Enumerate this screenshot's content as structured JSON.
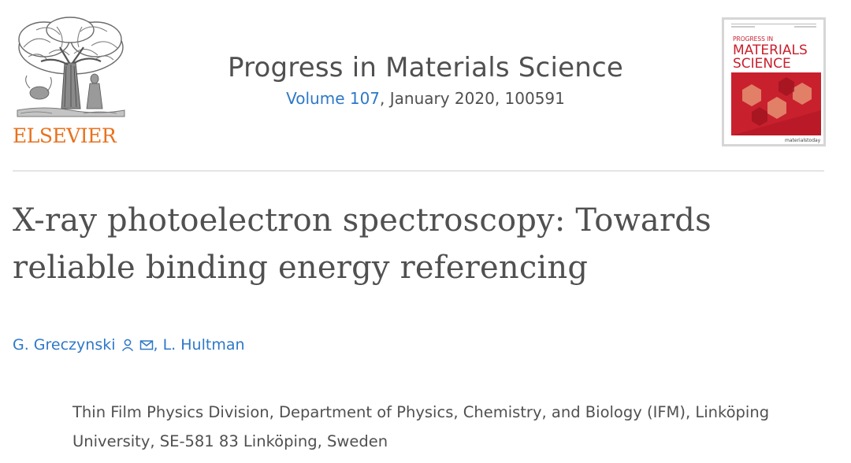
{
  "publisher": {
    "name": "ELSEVIER"
  },
  "journal": {
    "title": "Progress in Materials Science",
    "volume_link": "Volume 107",
    "issue_rest": ", January 2020, 100591"
  },
  "cover": {
    "line1": "PROGRESS IN",
    "line2": "MATERIALS",
    "line3": "SCIENCE",
    "footer": "materialstoday"
  },
  "article": {
    "title": "X-ray photoelectron spectroscopy: Towards reliable binding energy referencing"
  },
  "authors": [
    {
      "name": "G. Greczynski",
      "icons": [
        "person-icon",
        "envelope-icon"
      ]
    },
    {
      "name": "L. Hultman"
    }
  ],
  "author_separator": ",",
  "affiliation": "Thin Film Physics Division, Department of Physics, Chemistry, and Biology (IFM), Linköping University, SE-581 83 Linköping, Sweden",
  "colors": {
    "publisher_orange": "#e9711c",
    "link_blue": "#2e78c7",
    "text_gray": "#505050",
    "cover_red": "#c9202e"
  }
}
